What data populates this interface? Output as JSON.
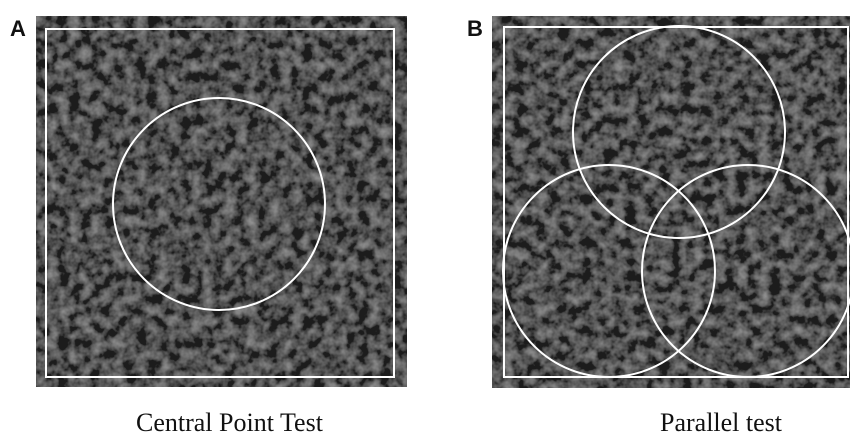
{
  "panels": [
    {
      "letter": "A",
      "caption": "Central Point Test"
    },
    {
      "letter": "B",
      "caption": "Parallel test"
    }
  ],
  "colors": {
    "background": "#ffffff",
    "texture_base": "#1c1c1c",
    "outline": "#ffffff",
    "text": "#111111"
  }
}
